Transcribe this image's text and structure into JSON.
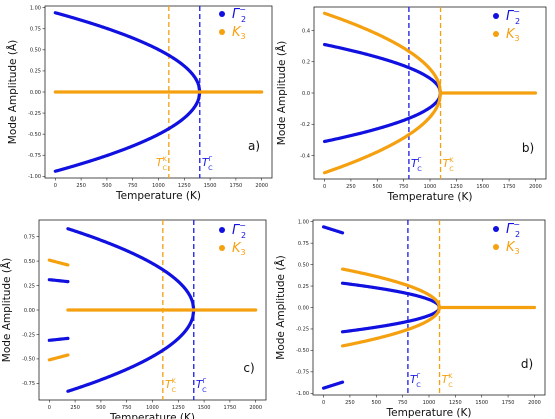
{
  "colors": {
    "gamma": "#1010e0",
    "k3": "#f5a00f",
    "tc_gamma": "#1a1ae6",
    "tc_k": "#f5a00f"
  },
  "common": {
    "xlabel": "Temperature (K)",
    "ylabel": "Mode Amplitude (Å)",
    "xticks": [
      0,
      250,
      500,
      750,
      1000,
      1250,
      1500,
      1750,
      2000
    ],
    "xlim": [
      -100,
      2100
    ],
    "legend": {
      "position": "top-right",
      "entries": [
        {
          "series": "gamma",
          "base": "Γ",
          "sub": "2",
          "sup": "−"
        },
        {
          "series": "k3",
          "base": "K",
          "sub": "3",
          "sup": ""
        }
      ]
    }
  },
  "chart_data": [
    {
      "type": "scatter",
      "panel": "a)",
      "ylim": [
        -1.02,
        1.02
      ],
      "yticks": [
        "1.00",
        "0.75",
        "0.50",
        "0.25",
        "0.00",
        "-0.25",
        "-0.50",
        "-0.75",
        "-1.00"
      ],
      "ytick_values": [
        1.0,
        0.75,
        0.5,
        0.25,
        0.0,
        -0.25,
        -0.5,
        -0.75,
        -1.0
      ],
      "tc": [
        {
          "series": "tc_k",
          "x": 1100,
          "text": "T",
          "sup": "K",
          "sub": "C",
          "label_side": "left"
        },
        {
          "series": "tc_gamma",
          "x": 1400,
          "text": "T",
          "sup": "Γ",
          "sub": "C",
          "label_side": "right"
        }
      ],
      "curves": [
        {
          "series": "gamma",
          "kind": "sqrt",
          "Tc": 1400,
          "amp": 0.94,
          "x0": 0,
          "x1": 1400,
          "sign": 1
        },
        {
          "series": "gamma",
          "kind": "sqrt",
          "Tc": 1400,
          "amp": 0.94,
          "x0": 0,
          "x1": 1400,
          "sign": -1
        },
        {
          "series": "k3",
          "kind": "flat",
          "value": 0,
          "x0": 0,
          "x1": 2000
        }
      ]
    },
    {
      "type": "scatter",
      "panel": "b)",
      "ylim": [
        -0.55,
        0.55
      ],
      "yticks": [
        "0.4",
        "0.2",
        "0.0",
        "-0.2",
        "-0.4"
      ],
      "ytick_values": [
        0.4,
        0.2,
        0.0,
        -0.2,
        -0.4
      ],
      "tc": [
        {
          "series": "tc_gamma",
          "x": 800,
          "text": "T",
          "sup": "Γ",
          "sub": "C",
          "label_side": "right"
        },
        {
          "series": "tc_k",
          "x": 1100,
          "text": "T",
          "sup": "K",
          "sub": "C",
          "label_side": "right"
        }
      ],
      "curves": [
        {
          "series": "gamma",
          "kind": "sqrt",
          "Tc": 1100,
          "amp": 0.31,
          "x0": 0,
          "x1": 1100,
          "sign": 1
        },
        {
          "series": "gamma",
          "kind": "sqrt",
          "Tc": 1100,
          "amp": 0.31,
          "x0": 0,
          "x1": 1100,
          "sign": -1
        },
        {
          "series": "k3",
          "kind": "sqrt",
          "Tc": 1100,
          "amp": 0.51,
          "x0": 0,
          "x1": 1100,
          "sign": 1
        },
        {
          "series": "k3",
          "kind": "sqrt",
          "Tc": 1100,
          "amp": 0.51,
          "x0": 0,
          "x1": 1100,
          "sign": -1
        },
        {
          "series": "k3",
          "kind": "flat",
          "value": 0,
          "x0": 1100,
          "x1": 2000
        }
      ]
    },
    {
      "type": "scatter",
      "panel": "c)",
      "ylim": [
        -0.92,
        0.92
      ],
      "yticks": [
        "0.75",
        "0.50",
        "0.25",
        "0.00",
        "-0.25",
        "-0.50",
        "-0.75"
      ],
      "ytick_values": [
        0.75,
        0.5,
        0.25,
        0.0,
        -0.25,
        -0.5,
        -0.75
      ],
      "tc": [
        {
          "series": "tc_k",
          "x": 1100,
          "text": "T",
          "sup": "K",
          "sub": "C",
          "label_side": "right"
        },
        {
          "series": "tc_gamma",
          "x": 1400,
          "text": "T",
          "sup": "Γ",
          "sub": "C",
          "label_side": "right"
        }
      ],
      "curves": [
        {
          "series": "gamma",
          "kind": "sqrt",
          "Tc": 1400,
          "amp": 0.89,
          "x0": 180,
          "x1": 1400,
          "sign": 1
        },
        {
          "series": "gamma",
          "kind": "sqrt",
          "Tc": 1400,
          "amp": 0.89,
          "x0": 180,
          "x1": 1400,
          "sign": -1
        },
        {
          "series": "k3",
          "kind": "flat",
          "value": 0,
          "x0": 180,
          "x1": 2000
        },
        {
          "series": "gamma",
          "kind": "line",
          "x0": 0,
          "x1": 180,
          "y0": 0.31,
          "y1": 0.29
        },
        {
          "series": "gamma",
          "kind": "line",
          "x0": 0,
          "x1": 180,
          "y0": -0.31,
          "y1": -0.29
        },
        {
          "series": "k3",
          "kind": "line",
          "x0": 0,
          "x1": 180,
          "y0": 0.51,
          "y1": 0.46
        },
        {
          "series": "k3",
          "kind": "line",
          "x0": 0,
          "x1": 180,
          "y0": -0.51,
          "y1": -0.46
        }
      ]
    },
    {
      "type": "scatter",
      "panel": "d)",
      "ylim": [
        -1.02,
        1.02
      ],
      "yticks": [
        "1.00",
        "0.75",
        "0.50",
        "0.25",
        "0.00",
        "-0.25",
        "-0.50",
        "-0.75",
        "-1.00"
      ],
      "ytick_values": [
        1.0,
        0.75,
        0.5,
        0.25,
        0.0,
        -0.25,
        -0.5,
        -0.75,
        -1.0
      ],
      "tc": [
        {
          "series": "tc_gamma",
          "x": 800,
          "text": "T",
          "sup": "Γ",
          "sub": "C",
          "label_side": "right"
        },
        {
          "series": "tc_k",
          "x": 1100,
          "text": "T",
          "sup": "K",
          "sub": "C",
          "label_side": "right"
        }
      ],
      "curves": [
        {
          "series": "gamma",
          "kind": "line",
          "x0": 0,
          "x1": 180,
          "y0": 0.94,
          "y1": 0.87
        },
        {
          "series": "gamma",
          "kind": "line",
          "x0": 0,
          "x1": 180,
          "y0": -0.94,
          "y1": -0.87
        },
        {
          "series": "gamma",
          "kind": "sqrt",
          "Tc": 1100,
          "amp": 0.31,
          "x0": 180,
          "x1": 1100,
          "sign": 1
        },
        {
          "series": "gamma",
          "kind": "sqrt",
          "Tc": 1100,
          "amp": 0.31,
          "x0": 180,
          "x1": 1100,
          "sign": -1
        },
        {
          "series": "k3",
          "kind": "sqrt",
          "Tc": 1100,
          "amp": 0.49,
          "x0": 180,
          "x1": 1100,
          "sign": 1
        },
        {
          "series": "k3",
          "kind": "sqrt",
          "Tc": 1100,
          "amp": 0.49,
          "x0": 180,
          "x1": 1100,
          "sign": -1
        },
        {
          "series": "k3",
          "kind": "flat",
          "value": 0,
          "x0": 1100,
          "x1": 2000
        }
      ]
    }
  ]
}
